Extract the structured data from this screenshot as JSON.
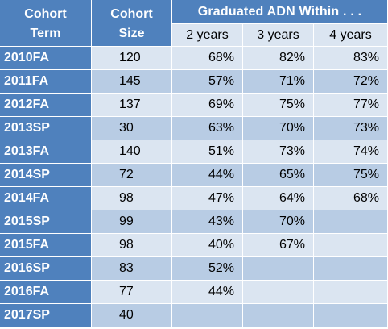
{
  "header": {
    "cohort_term_line1": "Cohort",
    "cohort_term_line2": "Term",
    "cohort_size_line1": "Cohort",
    "cohort_size_line2": "Size",
    "graduated": "Graduated ADN Within . . ."
  },
  "subheaders": [
    "2 years",
    "3 years",
    "4 years"
  ],
  "rows": [
    {
      "term": "2010FA",
      "size": "120",
      "y2": "68%",
      "y3": "82%",
      "y4": "83%"
    },
    {
      "term": "2011FA",
      "size": "145",
      "y2": "57%",
      "y3": "71%",
      "y4": "72%"
    },
    {
      "term": "2012FA",
      "size": "137",
      "y2": "69%",
      "y3": "75%",
      "y4": "77%"
    },
    {
      "term": "2013SP",
      "size": "30",
      "y2": "63%",
      "y3": "70%",
      "y4": "73%"
    },
    {
      "term": "2013FA",
      "size": "140",
      "y2": "51%",
      "y3": "73%",
      "y4": "74%"
    },
    {
      "term": "2014SP",
      "size": "72",
      "y2": "44%",
      "y3": "65%",
      "y4": "75%"
    },
    {
      "term": "2014FA",
      "size": "98",
      "y2": "47%",
      "y3": "64%",
      "y4": "68%"
    },
    {
      "term": "2015SP",
      "size": "99",
      "y2": "43%",
      "y3": "70%",
      "y4": ""
    },
    {
      "term": "2015FA",
      "size": "98",
      "y2": "40%",
      "y3": "67%",
      "y4": ""
    },
    {
      "term": "2016SP",
      "size": "83",
      "y2": "52%",
      "y3": "",
      "y4": ""
    },
    {
      "term": "2016FA",
      "size": "77",
      "y2": "44%",
      "y3": "",
      "y4": ""
    },
    {
      "term": "2017SP",
      "size": "40",
      "y2": "",
      "y3": "",
      "y4": ""
    }
  ],
  "colors": {
    "header_bg": "#4f81bd",
    "header_text": "#ffffff",
    "row_light": "#dbe5f1",
    "row_dark": "#b8cce4"
  }
}
